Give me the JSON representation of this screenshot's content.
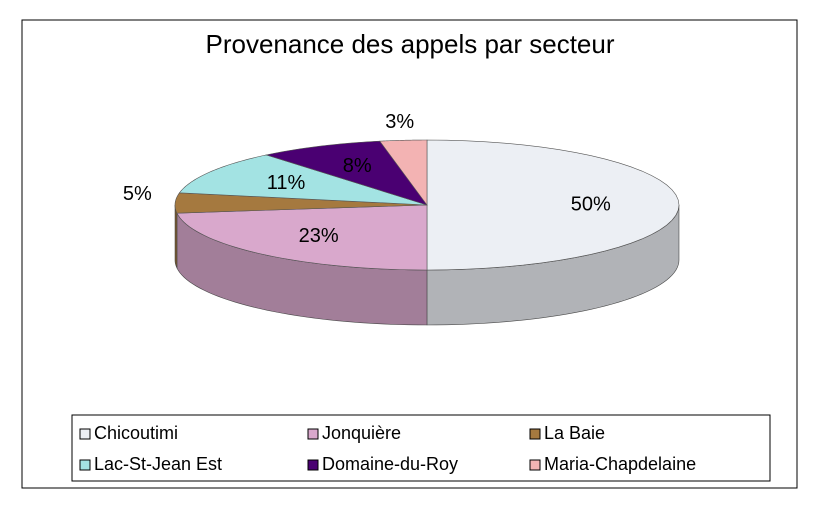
{
  "chart_data": {
    "type": "pie3d",
    "title": "Provenance des appels par secteur",
    "categories": [
      "Chicoutimi",
      "Jonquière",
      "La Baie",
      "Lac-St-Jean Est",
      "Domaine-du-Roy",
      "Maria-Chapdelaine"
    ],
    "values": [
      50,
      23,
      5,
      11,
      8,
      3
    ],
    "value_labels": [
      "50%",
      "23%",
      "5%",
      "11%",
      "8%",
      "3%"
    ],
    "colors": [
      "#eceff4",
      "#d9a8cc",
      "#a5793f",
      "#a3e3e3",
      "#4a0072",
      "#f3b3b3"
    ],
    "legend": "bottom"
  }
}
